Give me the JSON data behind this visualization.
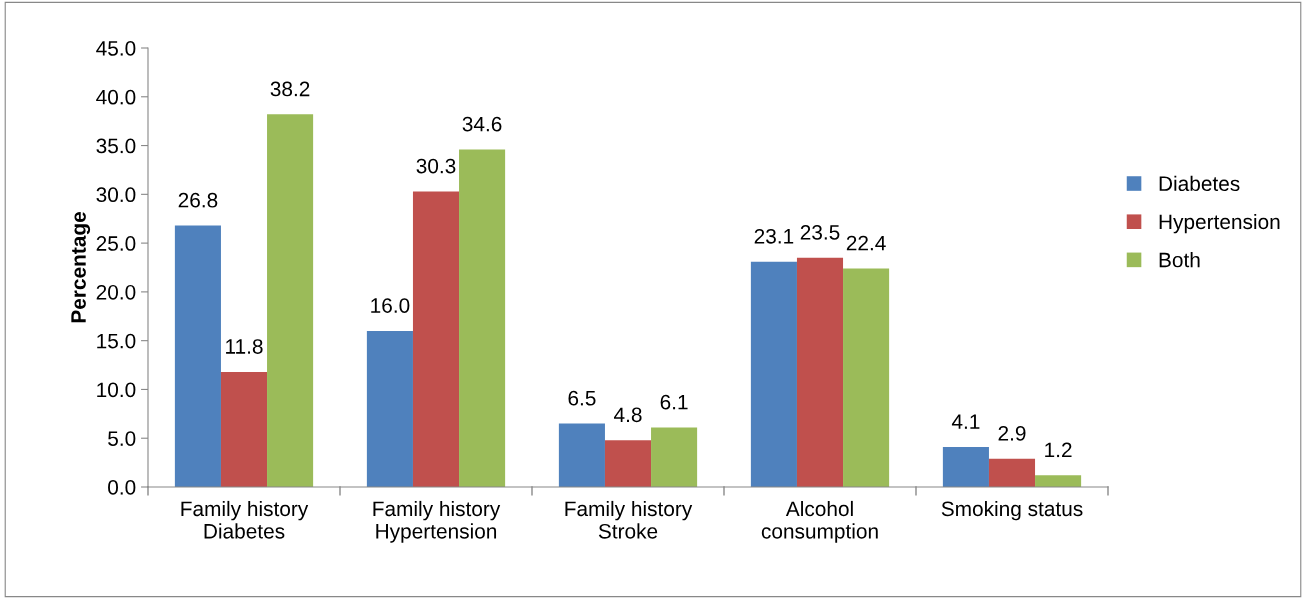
{
  "chart_data": {
    "type": "bar",
    "ylabel": "Percentage",
    "categories": [
      "Family history\nDiabetes",
      "Family history\nHypertension",
      "Family history\nStroke",
      "Alcohol\nconsumption",
      "Smoking status"
    ],
    "series": [
      {
        "name": "Diabetes",
        "color": "#4f81bd",
        "values": [
          26.8,
          16.0,
          6.5,
          23.1,
          4.1
        ],
        "value_labels": [
          "26.8",
          "16.0",
          "6.5",
          "23.1",
          "4.1"
        ]
      },
      {
        "name": "Hypertension",
        "color": "#c0504d",
        "values": [
          11.8,
          30.3,
          4.8,
          23.5,
          2.9
        ],
        "value_labels": [
          "11.8",
          "30.3",
          "4.8",
          "23.5",
          "2.9"
        ]
      },
      {
        "name": "Both",
        "color": "#9bbb59",
        "values": [
          38.2,
          34.6,
          6.1,
          22.4,
          1.2
        ],
        "value_labels": [
          "38.2",
          "34.6",
          "6.1",
          "22.4",
          "1.2"
        ]
      }
    ],
    "ylim": [
      0,
      45
    ],
    "yticks": [
      {
        "value": 0,
        "label": "0.0"
      },
      {
        "value": 5,
        "label": "5.0"
      },
      {
        "value": 10,
        "label": "10.0"
      },
      {
        "value": 15,
        "label": "15.0"
      },
      {
        "value": 20,
        "label": "20.0"
      },
      {
        "value": 25,
        "label": "25.0"
      },
      {
        "value": 30,
        "label": "30.0"
      },
      {
        "value": 35,
        "label": "35.0"
      },
      {
        "value": 40,
        "label": "40.0"
      },
      {
        "value": 45,
        "label": "45.0"
      }
    ],
    "grid": false,
    "legend": "right"
  }
}
